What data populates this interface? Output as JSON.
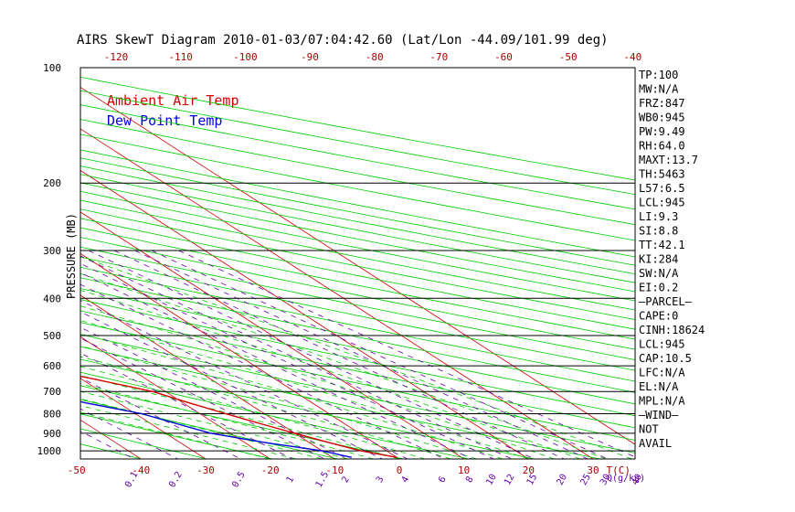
{
  "title": "AIRS SkewT Diagram 2010-01-03/07:04:42.60 (Lat/Lon -44.09/101.99 deg)",
  "legend": {
    "ambient": "Ambient Air Temp",
    "dewpoint": "Dew Point Temp"
  },
  "colors": {
    "ambient": "#d40000",
    "dewpoint": "#0000dd",
    "isotherm": "#cc0000",
    "dry_adiabat": "#00cc00",
    "moist_adiabat": "#00cc00",
    "mixing_ratio": "#6600aa",
    "frame": "#000000",
    "pressure_label": "#000000",
    "temp_label": "#aa0000"
  },
  "chart_data": {
    "type": "line",
    "ylabel": "PRESSURE (MB)",
    "y_scale": "log (reversed)",
    "ylim": [
      1050,
      100
    ],
    "pressure_ticks": [
      100,
      200,
      300,
      400,
      500,
      600,
      700,
      800,
      900,
      1000
    ],
    "pressure_lines": [
      200,
      300,
      400,
      500,
      600,
      700,
      800,
      900,
      1000
    ],
    "bottom_temp_ticks": [
      -50,
      -40,
      -30,
      -20,
      -10,
      0,
      10,
      20,
      30
    ],
    "top_temp_ticks": [
      -120,
      -110,
      -100,
      -90,
      -80,
      -70,
      -60,
      -50,
      -40
    ],
    "xlabel_unit": "T(C)",
    "mixing_ratio_labels": [
      "0.1",
      "0.2",
      "0.5",
      "1",
      "1.5",
      "2",
      "3",
      "4",
      "6",
      "8",
      "10",
      "12",
      "15",
      "20",
      "25",
      "30",
      "40"
    ],
    "mixing_ratio_values": [
      0.1,
      0.2,
      0.5,
      1,
      1.5,
      2,
      3,
      4,
      6,
      8,
      10,
      12,
      15,
      20,
      25,
      30,
      40
    ],
    "mixing_ratio_unit": "Q(g/kg)",
    "isotherm_range": [
      -160,
      40
    ],
    "isotherm_step": 10,
    "dry_adiabat_thetas_k": [
      230,
      240,
      250,
      260,
      270,
      280,
      290,
      300,
      310,
      320,
      330,
      340,
      350,
      360,
      370,
      380,
      390,
      400,
      410,
      420,
      430,
      440,
      450,
      460,
      470,
      480,
      490,
      500,
      520,
      540,
      560,
      580,
      600
    ],
    "moist_adiabat_start_temps_c": [
      -20,
      -16,
      -12,
      -8,
      -4,
      0,
      4,
      8,
      12,
      16,
      20,
      24,
      28,
      32,
      36
    ],
    "grid": true,
    "series": [
      {
        "name": "Ambient Air Temp",
        "pressure": [
          100,
          120,
          150,
          180,
          200,
          230,
          260,
          300,
          350,
          400,
          450,
          500,
          550,
          600,
          650,
          700,
          750,
          800,
          850,
          900,
          950,
          1000,
          1040
        ],
        "temperature": [
          -53,
          -58,
          -63,
          -67,
          -70,
          -74,
          -78,
          -78,
          -70,
          -62,
          -55,
          -48,
          -41,
          -35,
          -28,
          -22,
          -19,
          -16,
          -13,
          -10,
          -7,
          -4,
          0
        ]
      },
      {
        "name": "Dew Point Temp",
        "pressure": [
          100,
          130,
          160,
          200,
          230,
          260,
          300,
          350,
          400,
          450,
          500,
          550,
          600,
          650,
          700,
          750,
          800,
          850,
          900,
          950,
          1000,
          1040
        ],
        "temperature": [
          -83,
          -94,
          -103,
          -108,
          -113,
          -115,
          -110,
          -100,
          -93,
          -80,
          -65,
          -56,
          -48,
          -46,
          -40,
          -35,
          -29,
          -26,
          -23,
          -17,
          -10,
          -7
        ]
      }
    ]
  },
  "indices": [
    "TP:100",
    "MW:N/A",
    "FRZ:847",
    "WB0:945",
    "PW:9.49",
    "RH:64.0",
    "MAXT:13.7",
    "TH:5463",
    "L57:6.5",
    "LCL:945",
    "LI:9.3",
    "SI:8.8",
    "TT:42.1",
    "KI:284",
    "SW:N/A",
    "EI:0.2",
    "–PARCEL–",
    "CAPE:0",
    "CINH:18624",
    "LCL:945",
    "CAP:10.5",
    "LFC:N/A",
    "EL:N/A",
    "MPL:N/A",
    "–WIND–",
    "NOT",
    "AVAIL"
  ]
}
